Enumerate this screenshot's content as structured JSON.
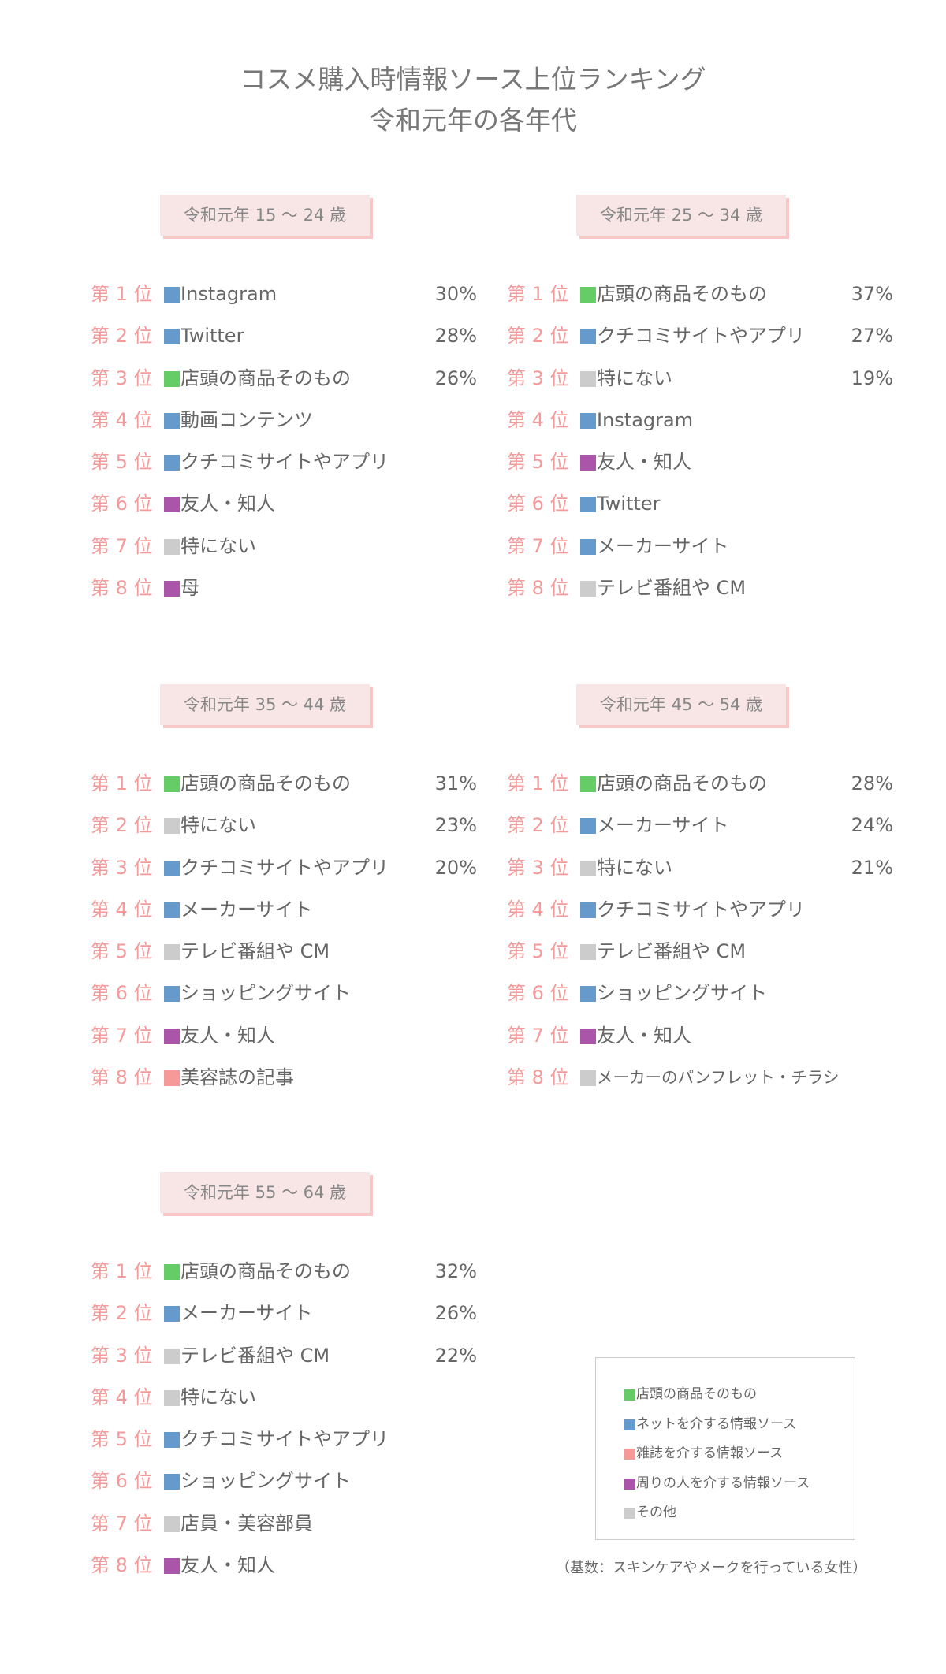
{
  "title_lines": [
    "コスメ購入時情報ソース上位ランキング",
    "令和元年の各年代"
  ],
  "colors": {
    "store": "#66cc66",
    "net": "#6699cc",
    "magazine": "#f59999",
    "people": "#aa55aa",
    "other": "#cccccc",
    "rank_text": "#f59a9a",
    "heading_bg": "#f8e6e6",
    "heading_shadow": "#f8c8c8"
  },
  "chart_data": [
    {
      "type": "table",
      "title": "令和元年 15 〜 24 歳",
      "rows": [
        {
          "rank": "第 1 位",
          "category": "net",
          "label": "Instagram",
          "value": "30%"
        },
        {
          "rank": "第 2 位",
          "category": "net",
          "label": "Twitter",
          "value": "28%"
        },
        {
          "rank": "第 3 位",
          "category": "store",
          "label": "店頭の商品そのもの",
          "value": "26%"
        },
        {
          "rank": "第 4 位",
          "category": "net",
          "label": "動画コンテンツ",
          "value": ""
        },
        {
          "rank": "第 5 位",
          "category": "net",
          "label": "クチコミサイトやアプリ",
          "value": ""
        },
        {
          "rank": "第 6 位",
          "category": "people",
          "label": "友人・知人",
          "value": ""
        },
        {
          "rank": "第 7 位",
          "category": "other",
          "label": "特にない",
          "value": ""
        },
        {
          "rank": "第 8 位",
          "category": "people",
          "label": "母",
          "value": ""
        }
      ]
    },
    {
      "type": "table",
      "title": "令和元年 25 〜 34 歳",
      "rows": [
        {
          "rank": "第 1 位",
          "category": "store",
          "label": "店頭の商品そのもの",
          "value": "37%"
        },
        {
          "rank": "第 2 位",
          "category": "net",
          "label": "クチコミサイトやアプリ",
          "value": "27%"
        },
        {
          "rank": "第 3 位",
          "category": "other",
          "label": "特にない",
          "value": "19%"
        },
        {
          "rank": "第 4 位",
          "category": "net",
          "label": "Instagram",
          "value": ""
        },
        {
          "rank": "第 5 位",
          "category": "people",
          "label": "友人・知人",
          "value": ""
        },
        {
          "rank": "第 6 位",
          "category": "net",
          "label": "Twitter",
          "value": ""
        },
        {
          "rank": "第 7 位",
          "category": "net",
          "label": "メーカーサイト",
          "value": ""
        },
        {
          "rank": "第 8 位",
          "category": "other",
          "label": "テレビ番組や CM",
          "value": ""
        }
      ]
    },
    {
      "type": "table",
      "title": "令和元年 35 〜 44 歳",
      "rows": [
        {
          "rank": "第 1 位",
          "category": "store",
          "label": "店頭の商品そのもの",
          "value": "31%"
        },
        {
          "rank": "第 2 位",
          "category": "other",
          "label": "特にない",
          "value": "23%"
        },
        {
          "rank": "第 3 位",
          "category": "net",
          "label": "クチコミサイトやアプリ",
          "value": "20%"
        },
        {
          "rank": "第 4 位",
          "category": "net",
          "label": "メーカーサイト",
          "value": ""
        },
        {
          "rank": "第 5 位",
          "category": "other",
          "label": "テレビ番組や CM",
          "value": ""
        },
        {
          "rank": "第 6 位",
          "category": "net",
          "label": "ショッピングサイト",
          "value": ""
        },
        {
          "rank": "第 7 位",
          "category": "people",
          "label": "友人・知人",
          "value": ""
        },
        {
          "rank": "第 8 位",
          "category": "magazine",
          "label": "美容誌の記事",
          "value": ""
        }
      ]
    },
    {
      "type": "table",
      "title": "令和元年 45 〜 54 歳",
      "rows": [
        {
          "rank": "第 1 位",
          "category": "store",
          "label": "店頭の商品そのもの",
          "value": "28%"
        },
        {
          "rank": "第 2 位",
          "category": "net",
          "label": "メーカーサイト",
          "value": "24%"
        },
        {
          "rank": "第 3 位",
          "category": "other",
          "label": "特にない",
          "value": "21%"
        },
        {
          "rank": "第 4 位",
          "category": "net",
          "label": "クチコミサイトやアプリ",
          "value": ""
        },
        {
          "rank": "第 5 位",
          "category": "other",
          "label": "テレビ番組や CM",
          "value": ""
        },
        {
          "rank": "第 6 位",
          "category": "net",
          "label": "ショッピングサイト",
          "value": ""
        },
        {
          "rank": "第 7 位",
          "category": "people",
          "label": "友人・知人",
          "value": ""
        },
        {
          "rank": "第 8 位",
          "category": "other",
          "label": "メーカーのパンフレット・チラシ",
          "value": ""
        }
      ]
    },
    {
      "type": "table",
      "title": "令和元年 55 〜 64 歳",
      "rows": [
        {
          "rank": "第 1 位",
          "category": "store",
          "label": "店頭の商品そのもの",
          "value": "32%"
        },
        {
          "rank": "第 2 位",
          "category": "net",
          "label": "メーカーサイト",
          "value": "26%"
        },
        {
          "rank": "第 3 位",
          "category": "other",
          "label": "テレビ番組や CM",
          "value": "22%"
        },
        {
          "rank": "第 4 位",
          "category": "other",
          "label": "特にない",
          "value": ""
        },
        {
          "rank": "第 5 位",
          "category": "net",
          "label": "クチコミサイトやアプリ",
          "value": ""
        },
        {
          "rank": "第 6 位",
          "category": "net",
          "label": "ショッピングサイト",
          "value": ""
        },
        {
          "rank": "第 7 位",
          "category": "other",
          "label": "店員・美容部員",
          "value": ""
        },
        {
          "rank": "第 8 位",
          "category": "people",
          "label": "友人・知人",
          "value": ""
        }
      ]
    }
  ],
  "legend": [
    {
      "category": "store",
      "label": "店頭の商品そのもの"
    },
    {
      "category": "net",
      "label": "ネットを介する情報ソース"
    },
    {
      "category": "magazine",
      "label": "雑誌を介する情報ソース"
    },
    {
      "category": "people",
      "label": "周りの人を介する情報ソース"
    },
    {
      "category": "other",
      "label": "その他"
    }
  ],
  "note": "（基数：スキンケアやメークを行っている女性）"
}
